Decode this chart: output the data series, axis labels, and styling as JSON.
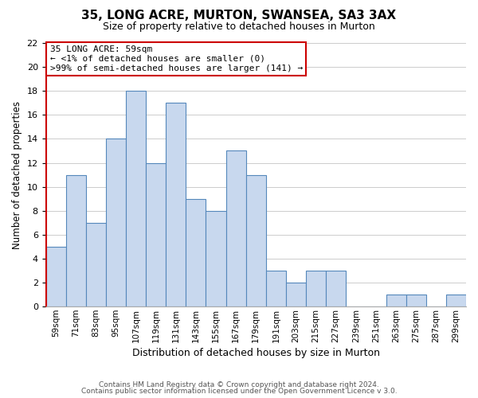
{
  "title": "35, LONG ACRE, MURTON, SWANSEA, SA3 3AX",
  "subtitle": "Size of property relative to detached houses in Murton",
  "xlabel": "Distribution of detached houses by size in Murton",
  "ylabel": "Number of detached properties",
  "categories": [
    "59sqm",
    "71sqm",
    "83sqm",
    "95sqm",
    "107sqm",
    "119sqm",
    "131sqm",
    "143sqm",
    "155sqm",
    "167sqm",
    "179sqm",
    "191sqm",
    "203sqm",
    "215sqm",
    "227sqm",
    "239sqm",
    "251sqm",
    "263sqm",
    "275sqm",
    "287sqm",
    "299sqm"
  ],
  "values": [
    5,
    11,
    7,
    14,
    18,
    12,
    17,
    9,
    8,
    13,
    11,
    3,
    2,
    3,
    3,
    0,
    0,
    1,
    1,
    0,
    1
  ],
  "bar_color": "#c8d8ee",
  "bar_edge_color": "#5588bb",
  "ylim": [
    0,
    22
  ],
  "yticks": [
    0,
    2,
    4,
    6,
    8,
    10,
    12,
    14,
    16,
    18,
    20,
    22
  ],
  "annotation_title": "35 LONG ACRE: 59sqm",
  "annotation_line1": "← <1% of detached houses are smaller (0)",
  "annotation_line2": ">99% of semi-detached houses are larger (141) →",
  "annotation_box_edge_color": "#cc0000",
  "footer_line1": "Contains HM Land Registry data © Crown copyright and database right 2024.",
  "footer_line2": "Contains public sector information licensed under the Open Government Licence v 3.0.",
  "background_color": "#ffffff",
  "grid_color": "#cccccc",
  "title_fontsize": 11,
  "subtitle_fontsize": 9,
  "xlabel_fontsize": 9,
  "ylabel_fontsize": 8.5,
  "tick_fontsize": 8,
  "xtick_fontsize": 7.5,
  "footer_fontsize": 6.5,
  "ann_fontsize": 8
}
